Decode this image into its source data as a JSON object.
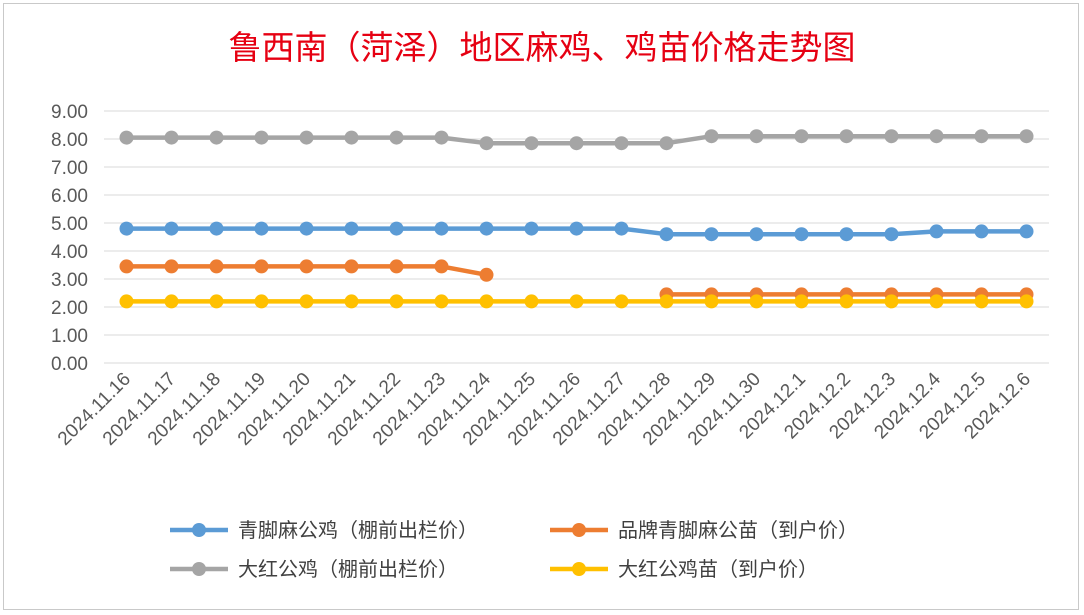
{
  "chart_data": {
    "type": "line",
    "title": "鲁西南（菏泽）地区麻鸡、鸡苗价格走势图",
    "ylim": [
      0,
      9
    ],
    "yticks": [
      "0.00",
      "1.00",
      "2.00",
      "3.00",
      "4.00",
      "5.00",
      "6.00",
      "7.00",
      "8.00",
      "9.00"
    ],
    "grid": true,
    "legend_position": "bottom",
    "categories": [
      "2024.11.16",
      "2024.11.17",
      "2024.11.18",
      "2024.11.19",
      "2024.11.20",
      "2024.11.21",
      "2024.11.22",
      "2024.11.23",
      "2024.11.24",
      "2024.11.25",
      "2024.11.26",
      "2024.11.27",
      "2024.11.28",
      "2024.11.29",
      "2024.11.30",
      "2024.12.1",
      "2024.12.2",
      "2024.12.3",
      "2024.12.4",
      "2024.12.5",
      "2024.12.6"
    ],
    "series": [
      {
        "name": "青脚麻公鸡（棚前出栏价）",
        "color": "#5b9bd5",
        "values": [
          4.8,
          4.8,
          4.8,
          4.8,
          4.8,
          4.8,
          4.8,
          4.8,
          4.8,
          4.8,
          4.8,
          4.8,
          4.6,
          4.6,
          4.6,
          4.6,
          4.6,
          4.6,
          4.7,
          4.7,
          4.7
        ]
      },
      {
        "name": "品牌青脚麻公苗（到户价）",
        "color": "#ed7d31",
        "values": [
          3.45,
          3.45,
          3.45,
          3.45,
          3.45,
          3.45,
          3.45,
          3.45,
          3.15,
          null,
          null,
          null,
          2.45,
          2.45,
          2.45,
          2.45,
          2.45,
          2.45,
          2.45,
          2.45,
          2.45
        ]
      },
      {
        "name": "大红公鸡（棚前出栏价）",
        "color": "#a5a5a5",
        "values": [
          8.05,
          8.05,
          8.05,
          8.05,
          8.05,
          8.05,
          8.05,
          8.05,
          7.85,
          7.85,
          7.85,
          7.85,
          7.85,
          8.1,
          8.1,
          8.1,
          8.1,
          8.1,
          8.1,
          8.1,
          8.1
        ]
      },
      {
        "name": "大红公鸡苗（到户价）",
        "color": "#ffc000",
        "values": [
          2.2,
          2.2,
          2.2,
          2.2,
          2.2,
          2.2,
          2.2,
          2.2,
          2.2,
          2.2,
          2.2,
          2.2,
          2.2,
          2.2,
          2.2,
          2.2,
          2.2,
          2.2,
          2.2,
          2.2,
          2.2
        ]
      }
    ]
  }
}
